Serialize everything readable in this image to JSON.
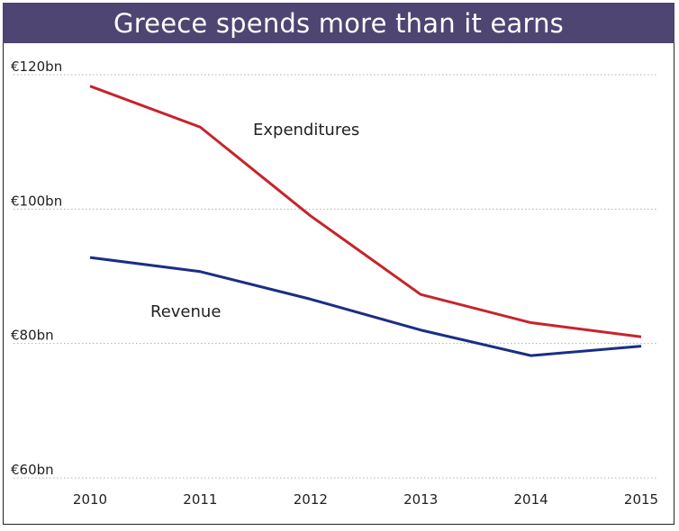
{
  "colors": {
    "title_bg": "#4e4572",
    "title_text": "#ffffff",
    "grid": "#b0b0b0",
    "expenditures": "#c8232c",
    "revenue": "#1a2e86"
  },
  "chart_data": {
    "type": "line",
    "title": "Greece spends more than it earns",
    "x": [
      2010,
      2011,
      2012,
      2013,
      2014,
      2015
    ],
    "x_tick_labels": [
      "2010",
      "2011",
      "2012",
      "2013",
      "2014",
      "2015"
    ],
    "ylim": [
      60,
      120
    ],
    "y_ticks": [
      60,
      80,
      100,
      120
    ],
    "y_tick_labels": [
      "€60bn",
      "€80bn",
      "€100bn",
      "€120bn"
    ],
    "grid": "horizontal dotted",
    "series": [
      {
        "name": "Expenditures",
        "values": [
          118.3,
          112.2,
          99.0,
          87.3,
          83.1,
          81.0
        ]
      },
      {
        "name": "Revenue",
        "values": [
          92.8,
          90.7,
          86.6,
          82.0,
          78.2,
          79.6
        ]
      }
    ]
  }
}
